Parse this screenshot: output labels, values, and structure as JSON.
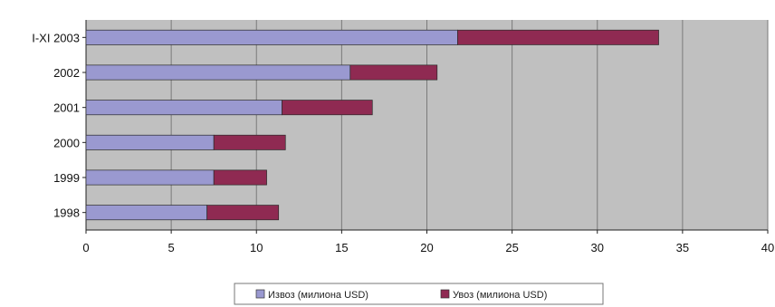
{
  "chart_data": {
    "type": "bar",
    "orientation": "horizontal",
    "stacked": true,
    "categories": [
      "1998",
      "1999",
      "2000",
      "2001",
      "2002",
      "I-XI 2003"
    ],
    "series": [
      {
        "name": "Извоз (милиона USD)",
        "values": [
          7.1,
          7.5,
          7.5,
          11.5,
          15.5,
          21.8
        ],
        "color": "#9a99d0"
      },
      {
        "name": "Увоз (милиона USD)",
        "values": [
          4.2,
          3.1,
          4.2,
          5.3,
          5.1,
          11.8
        ],
        "color": "#8f2a52"
      }
    ],
    "xlim": [
      0,
      40
    ],
    "xticks": [
      "0",
      "5",
      "10",
      "15",
      "20",
      "25",
      "30",
      "35",
      "40"
    ],
    "grid": true,
    "plot_background": "#c0c0c0",
    "legend_position": "bottom"
  }
}
